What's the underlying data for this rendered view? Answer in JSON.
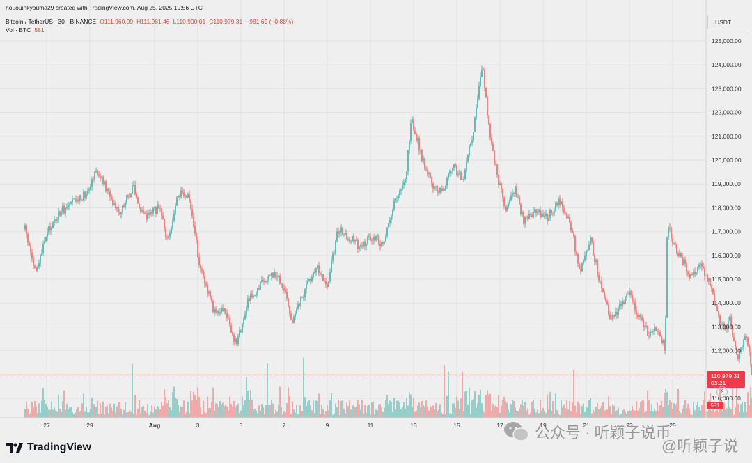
{
  "header": {
    "caption": "hououinkyouma29 created with TradingView.com, Aug 25, 2025 19:56 UTC",
    "symbol": "Bitcoin / TetherUS · 30 · BINANCE",
    "open": "O111,960.99",
    "high": "H111,981.46",
    "low": "L110,900.01",
    "close": "C110,979.31",
    "change": "−981.69 (−0.88%)",
    "vol_label": "Vol · BTC",
    "vol_value": "581"
  },
  "currency": "USDT",
  "price_tag": {
    "price": "110,979.31",
    "countdown": "03:21"
  },
  "vol_tag": "581",
  "logo_text": "TradingView",
  "watermark": {
    "text1": "公众号 · 听颖子说币",
    "text2": "@听颖子说"
  },
  "colors": {
    "up": "#26a69a",
    "down": "#ef5350",
    "background": "#efefef",
    "last_price_tag": "#f03a4a"
  },
  "chart_data": {
    "type": "candlestick",
    "series": [
      {
        "name": "Bitcoin / TetherUS",
        "interval": "30"
      }
    ],
    "y_axis": {
      "ticks": [
        "110,000.00",
        "111,000.00",
        "112,000.00",
        "113,000.00",
        "114,000.00",
        "115,000.00",
        "116,000.00",
        "117,000.00",
        "118,000.00",
        "119,000.00",
        "120,000.00",
        "121,000.00",
        "122,000.00",
        "123,000.00",
        "124,000.00",
        "125,000.00"
      ],
      "ylim": [
        109000,
        125700
      ]
    },
    "x_axis": {
      "ticks": [
        "27",
        "29",
        "Aug",
        "3",
        "5",
        "7",
        "9",
        "11",
        "13",
        "15",
        "17",
        "19",
        "21",
        "23",
        "25"
      ]
    },
    "price_path": [
      {
        "t": 0.0,
        "p": 117100
      },
      {
        "t": 0.5,
        "p": 115200
      },
      {
        "t": 1.0,
        "p": 116900
      },
      {
        "t": 1.6,
        "p": 117800
      },
      {
        "t": 2.2,
        "p": 118200
      },
      {
        "t": 2.8,
        "p": 118600
      },
      {
        "t": 3.3,
        "p": 119600
      },
      {
        "t": 3.8,
        "p": 118700
      },
      {
        "t": 4.4,
        "p": 117800
      },
      {
        "t": 5.0,
        "p": 118900
      },
      {
        "t": 5.5,
        "p": 117600
      },
      {
        "t": 6.2,
        "p": 118000
      },
      {
        "t": 6.6,
        "p": 116600
      },
      {
        "t": 7.1,
        "p": 118600
      },
      {
        "t": 7.6,
        "p": 118400
      },
      {
        "t": 8.1,
        "p": 115500
      },
      {
        "t": 8.7,
        "p": 113800
      },
      {
        "t": 9.3,
        "p": 113600
      },
      {
        "t": 9.8,
        "p": 112200
      },
      {
        "t": 10.3,
        "p": 114000
      },
      {
        "t": 10.9,
        "p": 114800
      },
      {
        "t": 11.4,
        "p": 115300
      },
      {
        "t": 12.0,
        "p": 114700
      },
      {
        "t": 12.4,
        "p": 113200
      },
      {
        "t": 12.9,
        "p": 114400
      },
      {
        "t": 13.5,
        "p": 115600
      },
      {
        "t": 14.0,
        "p": 114700
      },
      {
        "t": 14.5,
        "p": 117100
      },
      {
        "t": 15.1,
        "p": 116700
      },
      {
        "t": 15.6,
        "p": 116300
      },
      {
        "t": 16.0,
        "p": 116800
      },
      {
        "t": 16.6,
        "p": 116500
      },
      {
        "t": 17.1,
        "p": 118200
      },
      {
        "t": 17.6,
        "p": 119000
      },
      {
        "t": 17.9,
        "p": 121700
      },
      {
        "t": 18.4,
        "p": 120100
      },
      {
        "t": 18.9,
        "p": 118900
      },
      {
        "t": 19.4,
        "p": 118700
      },
      {
        "t": 19.8,
        "p": 119800
      },
      {
        "t": 20.3,
        "p": 119200
      },
      {
        "t": 20.8,
        "p": 121400
      },
      {
        "t": 21.2,
        "p": 124100
      },
      {
        "t": 21.5,
        "p": 121200
      },
      {
        "t": 21.9,
        "p": 119200
      },
      {
        "t": 22.3,
        "p": 117800
      },
      {
        "t": 22.7,
        "p": 118900
      },
      {
        "t": 23.1,
        "p": 117400
      },
      {
        "t": 23.6,
        "p": 117800
      },
      {
        "t": 24.2,
        "p": 117600
      },
      {
        "t": 24.8,
        "p": 118300
      },
      {
        "t": 25.3,
        "p": 117200
      },
      {
        "t": 25.7,
        "p": 115300
      },
      {
        "t": 26.2,
        "p": 116700
      },
      {
        "t": 26.6,
        "p": 115000
      },
      {
        "t": 27.1,
        "p": 113300
      },
      {
        "t": 27.6,
        "p": 113900
      },
      {
        "t": 28.0,
        "p": 114600
      },
      {
        "t": 28.4,
        "p": 113400
      },
      {
        "t": 28.9,
        "p": 112700
      },
      {
        "t": 29.3,
        "p": 112900
      },
      {
        "t": 29.65,
        "p": 112000
      },
      {
        "t": 29.75,
        "p": 117200
      },
      {
        "t": 30.3,
        "p": 116000
      },
      {
        "t": 30.8,
        "p": 115200
      },
      {
        "t": 31.3,
        "p": 115500
      },
      {
        "t": 31.8,
        "p": 114800
      },
      {
        "t": 32.2,
        "p": 113000
      },
      {
        "t": 32.5,
        "p": 112900
      },
      {
        "t": 32.6,
        "p": 113500
      },
      {
        "t": 33.0,
        "p": 111600
      },
      {
        "t": 33.4,
        "p": 112800
      },
      {
        "t": 33.7,
        "p": 110980
      }
    ],
    "last_price": 110979.31,
    "volume_last": 581
  }
}
